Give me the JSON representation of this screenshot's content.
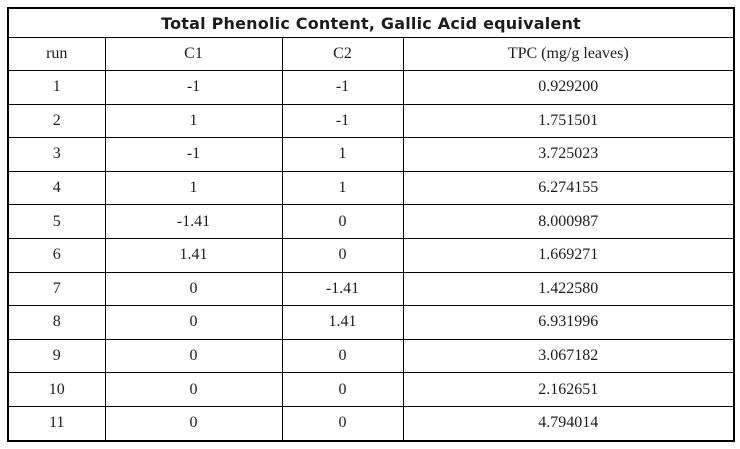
{
  "table": {
    "title": "Total Phenolic Content, Gallic Acid equivalent",
    "columns": [
      "run",
      "C1",
      "C2",
      "TPC (mg/g leaves)"
    ],
    "rows": [
      [
        "1",
        "-1",
        "-1",
        "0.929200"
      ],
      [
        "2",
        "1",
        "-1",
        "1.751501"
      ],
      [
        "3",
        "-1",
        "1",
        "3.725023"
      ],
      [
        "4",
        "1",
        "1",
        "6.274155"
      ],
      [
        "5",
        "-1.41",
        "0",
        "8.000987"
      ],
      [
        "6",
        "1.41",
        "0",
        "1.669271"
      ],
      [
        "7",
        "0",
        "-1.41",
        "1.422580"
      ],
      [
        "8",
        "0",
        "1.41",
        "6.931996"
      ],
      [
        "9",
        "0",
        "0",
        "3.067182"
      ],
      [
        "10",
        "0",
        "0",
        "2.162651"
      ],
      [
        "11",
        "0",
        "0",
        "4.794014"
      ]
    ]
  },
  "chart_data": {
    "type": "table",
    "title": "Total Phenolic Content, Gallic Acid equivalent",
    "columns": [
      "run",
      "C1",
      "C2",
      "TPC (mg/g leaves)"
    ],
    "rows": [
      [
        1,
        -1,
        -1,
        0.9292
      ],
      [
        2,
        1,
        -1,
        1.751501
      ],
      [
        3,
        -1,
        1,
        3.725023
      ],
      [
        4,
        1,
        1,
        6.274155
      ],
      [
        5,
        -1.41,
        0,
        8.000987
      ],
      [
        6,
        1.41,
        0,
        1.669271
      ],
      [
        7,
        0,
        -1.41,
        1.42258
      ],
      [
        8,
        0,
        1.41,
        6.931996
      ],
      [
        9,
        0,
        0,
        3.067182
      ],
      [
        10,
        0,
        0,
        2.162651
      ],
      [
        11,
        0,
        0,
        4.794014
      ]
    ]
  },
  "colors": {
    "border": "#000000",
    "text": "#1c1c1c",
    "background": "#ffffff"
  }
}
